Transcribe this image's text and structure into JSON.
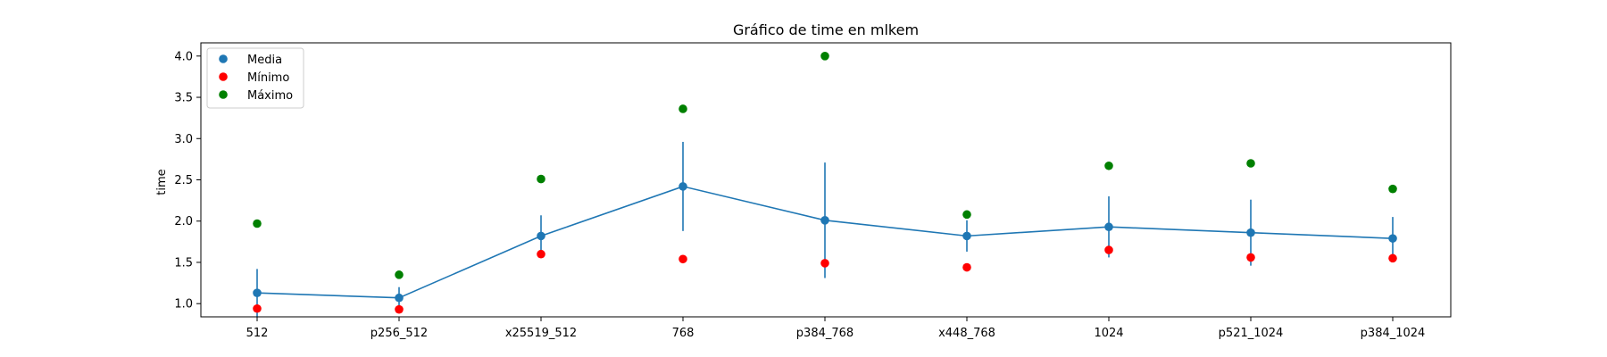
{
  "chart_data": {
    "type": "scatter",
    "title": "Gráfico de time en mlkem",
    "xlabel": "",
    "ylabel": "time",
    "categories": [
      "512",
      "p256_512",
      "x25519_512",
      "768",
      "p384_768",
      "x448_768",
      "1024",
      "p521_1024",
      "p384_1024"
    ],
    "ylim": [
      0.84,
      4.16
    ],
    "yticks": [
      1.0,
      1.5,
      2.0,
      2.5,
      3.0,
      3.5,
      4.0
    ],
    "grid": false,
    "legend_position": "upper-left",
    "series": [
      {
        "name": "Media",
        "color": "#1f77b4",
        "style": "line-with-errorbars",
        "values": [
          1.13,
          1.07,
          1.82,
          2.42,
          2.01,
          1.82,
          1.93,
          1.86,
          1.79
        ],
        "error": [
          0.29,
          0.13,
          0.25,
          0.54,
          0.7,
          0.19,
          0.37,
          0.4,
          0.26
        ]
      },
      {
        "name": "Mínimo",
        "color": "#ff0000",
        "style": "points",
        "values": [
          0.94,
          0.93,
          1.6,
          1.54,
          1.49,
          1.44,
          1.65,
          1.56,
          1.55
        ]
      },
      {
        "name": "Máximo",
        "color": "#008000",
        "style": "points",
        "values": [
          1.97,
          1.35,
          2.51,
          3.36,
          4.0,
          2.08,
          2.67,
          2.7,
          2.39
        ]
      }
    ]
  }
}
